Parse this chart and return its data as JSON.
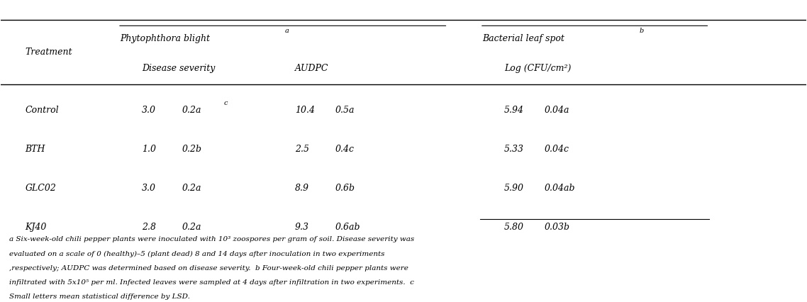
{
  "title_phyto": "Phytophthora blight",
  "title_phyto_sup": "a",
  "title_bacterial": "Bacterial leaf spot",
  "title_bacterial_sup": "b",
  "col_treatment": "Treatment",
  "col_disease_severity": "Disease severity",
  "col_audpc": "AUDPC",
  "col_log": "Log (CFU/cm²)",
  "rows": [
    {
      "treatment": "Control",
      "ds_val": "3.0",
      "ds_se": "0.2a",
      "ds_se_sup": "c",
      "audpc_val": "10.4",
      "audpc_se": "0.5a",
      "log_val": "5.94",
      "log_se": "0.04a"
    },
    {
      "treatment": "BTH",
      "ds_val": "1.0",
      "ds_se": "0.2b",
      "ds_se_sup": "",
      "audpc_val": "2.5",
      "audpc_se": "0.4c",
      "log_val": "5.33",
      "log_se": "0.04c"
    },
    {
      "treatment": "GLC02",
      "ds_val": "3.0",
      "ds_se": "0.2a",
      "ds_se_sup": "",
      "audpc_val": "8.9",
      "audpc_se": "0.6b",
      "log_val": "5.90",
      "log_se": "0.04ab"
    },
    {
      "treatment": "KJ40",
      "ds_val": "2.8",
      "ds_se": "0.2a",
      "ds_se_sup": "",
      "audpc_val": "9.3",
      "audpc_se": "0.6ab",
      "log_val": "5.80",
      "log_se": "0.03b"
    }
  ],
  "footnote": "a Six-week-old chili pepper plants were inoculated with 10³ zoospores per gram of soil. Disease severity was\nevaluated on a scale of 0 (healthy)–5 (plant dead) 8 and 14 days after inoculation in two experiments\n,respectively; AUDPC was determined based on disease severity.  b Four-week-old chili pepper plants were\ninfiltrated with 5x10⁵ per ml. Infected leaves were sampled at 4 days after infiltration in two experiments.  c\nSmall letters mean statistical difference by LSD.",
  "bg_color": "#ffffff",
  "text_color": "#000000",
  "font_size": 9,
  "footnote_font_size": 7.5
}
